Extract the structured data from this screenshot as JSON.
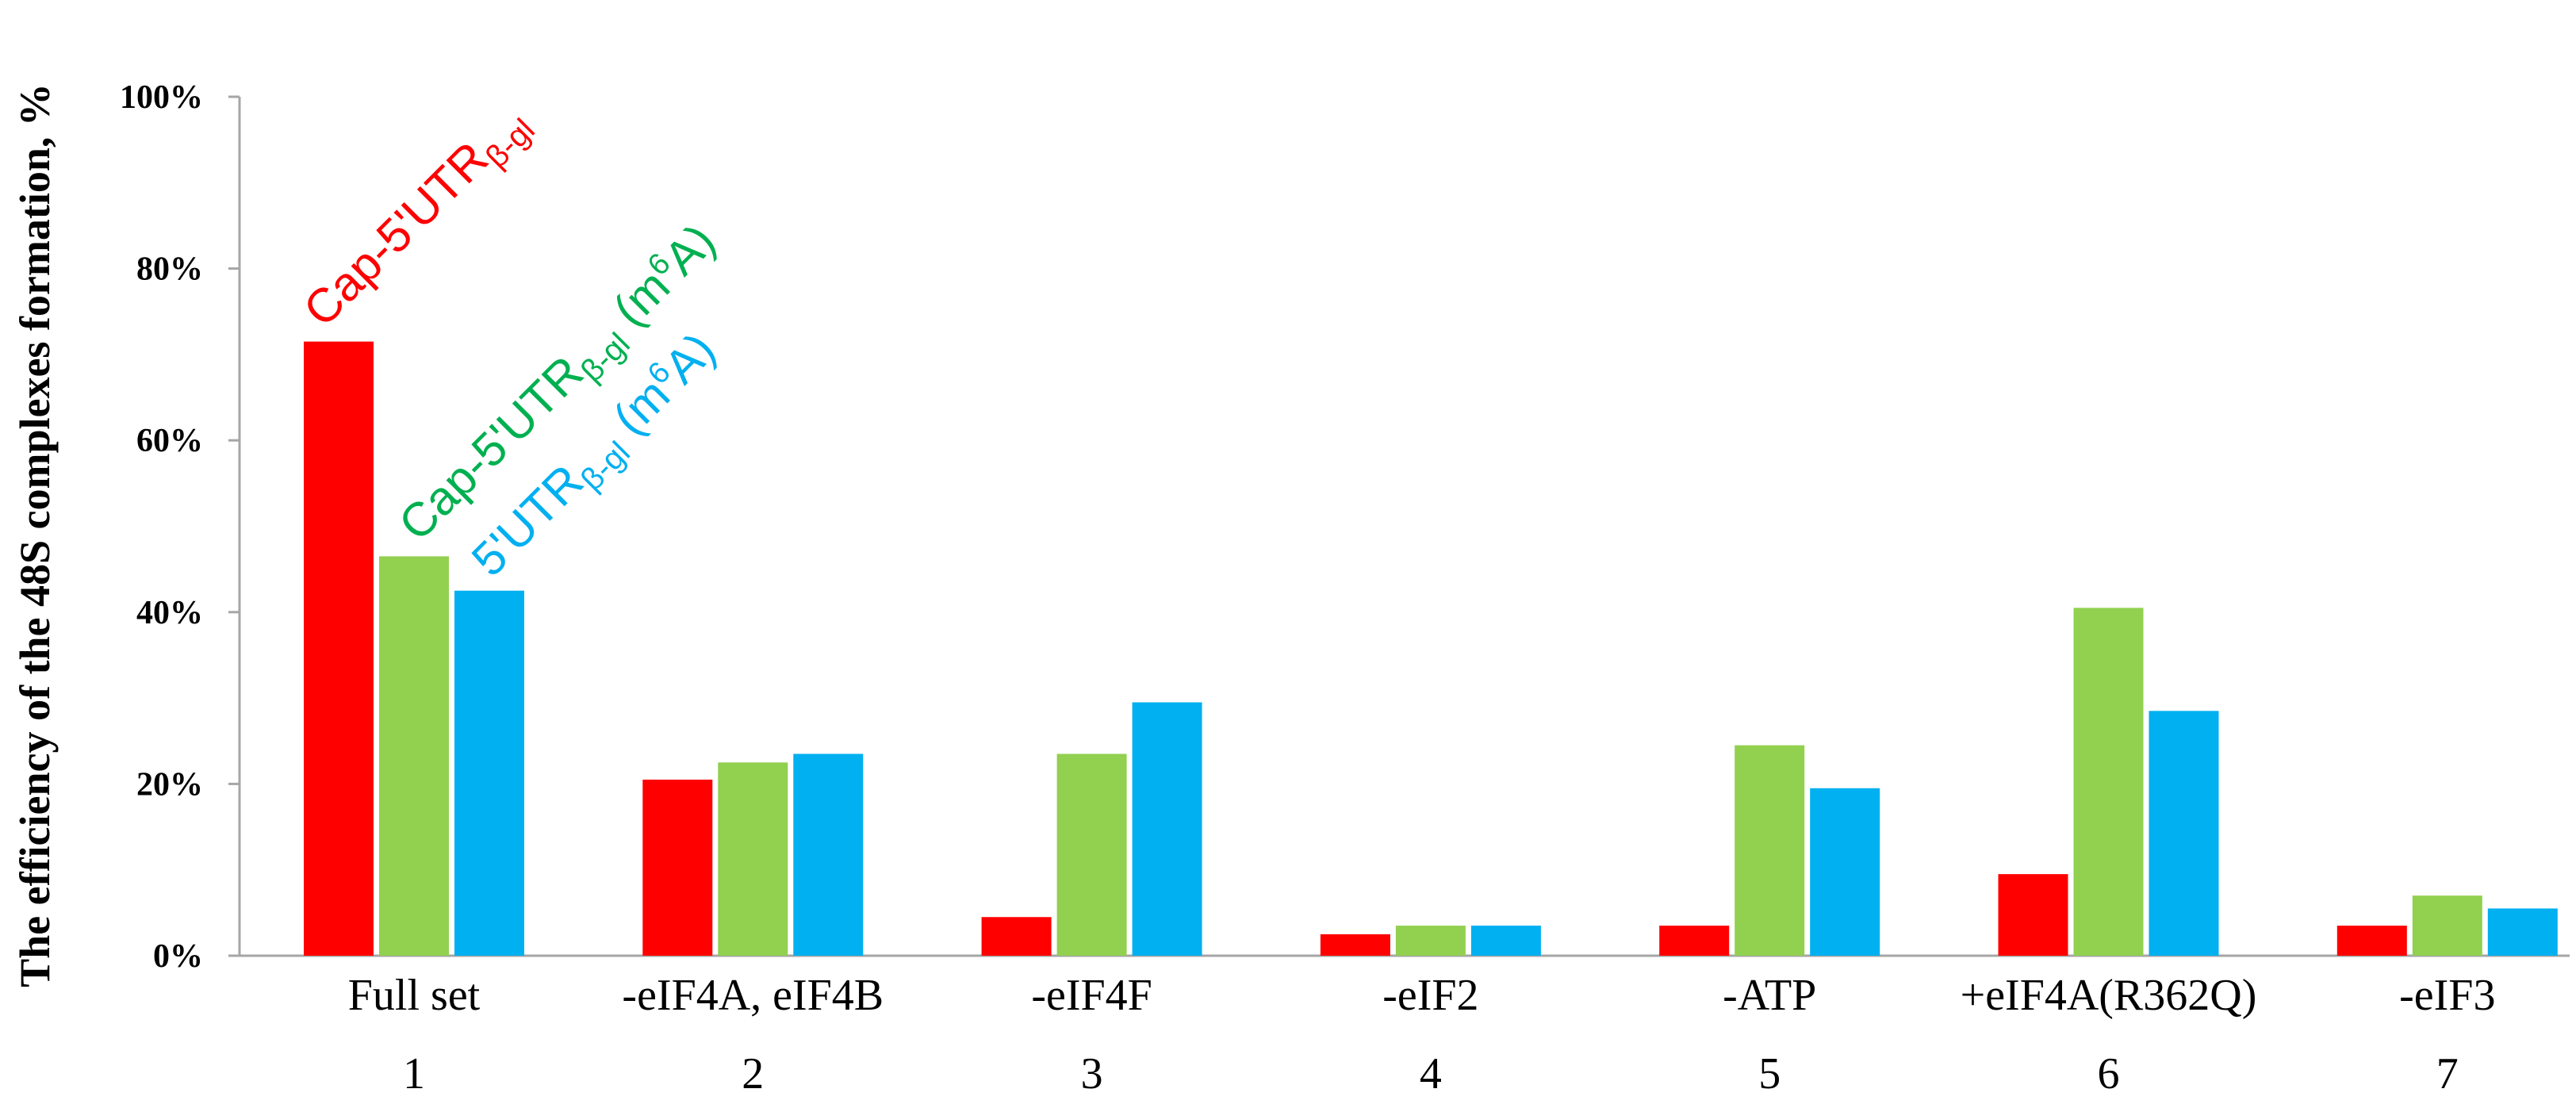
{
  "chart_data": {
    "type": "bar",
    "ylabel": "The efficiency of the 48S complexes formation, %",
    "ylim": [
      0,
      100
    ],
    "yticks": [
      "0%",
      "20%",
      "40%",
      "60%",
      "80%",
      "100%"
    ],
    "categories": [
      "Full set",
      "-eIF4A, eIF4B",
      "-eIF4F",
      "-eIF2",
      "-ATP",
      "+eIF4A(R362Q)",
      "-eIF3"
    ],
    "category_numbers": [
      "1",
      "2",
      "3",
      "4",
      "5",
      "6",
      "7"
    ],
    "series": [
      {
        "name": "Cap-5'UTRβ-gl",
        "label": {
          "main": "Cap-5'UTR",
          "sub": "β-gl",
          "tail": ""
        },
        "color": "#ff0000",
        "values": [
          71.5,
          20.5,
          4.5,
          2.5,
          3.5,
          9.5,
          3.5
        ]
      },
      {
        "name": "Cap-5'UTRβ-gl (m6A)",
        "label": {
          "main": "Cap-5'UTR",
          "sub": "β-gl",
          "tail": " (m",
          "sup": "6",
          "end": "A)"
        },
        "color": "#92d050",
        "label_color": "#00b050",
        "values": [
          46.5,
          22.5,
          23.5,
          3.5,
          24.5,
          40.5,
          7
        ]
      },
      {
        "name": "5'UTRβ-gl (m6A)",
        "label": {
          "main": "5'UTR",
          "sub": "β-gl",
          "tail": " (m",
          "sup": "6",
          "end": "A)"
        },
        "color": "#00b0f0",
        "values": [
          42.5,
          23.5,
          29.5,
          3.5,
          19.5,
          28.5,
          5.5
        ]
      }
    ],
    "grid": false,
    "legend": "rotated labels above first group"
  }
}
